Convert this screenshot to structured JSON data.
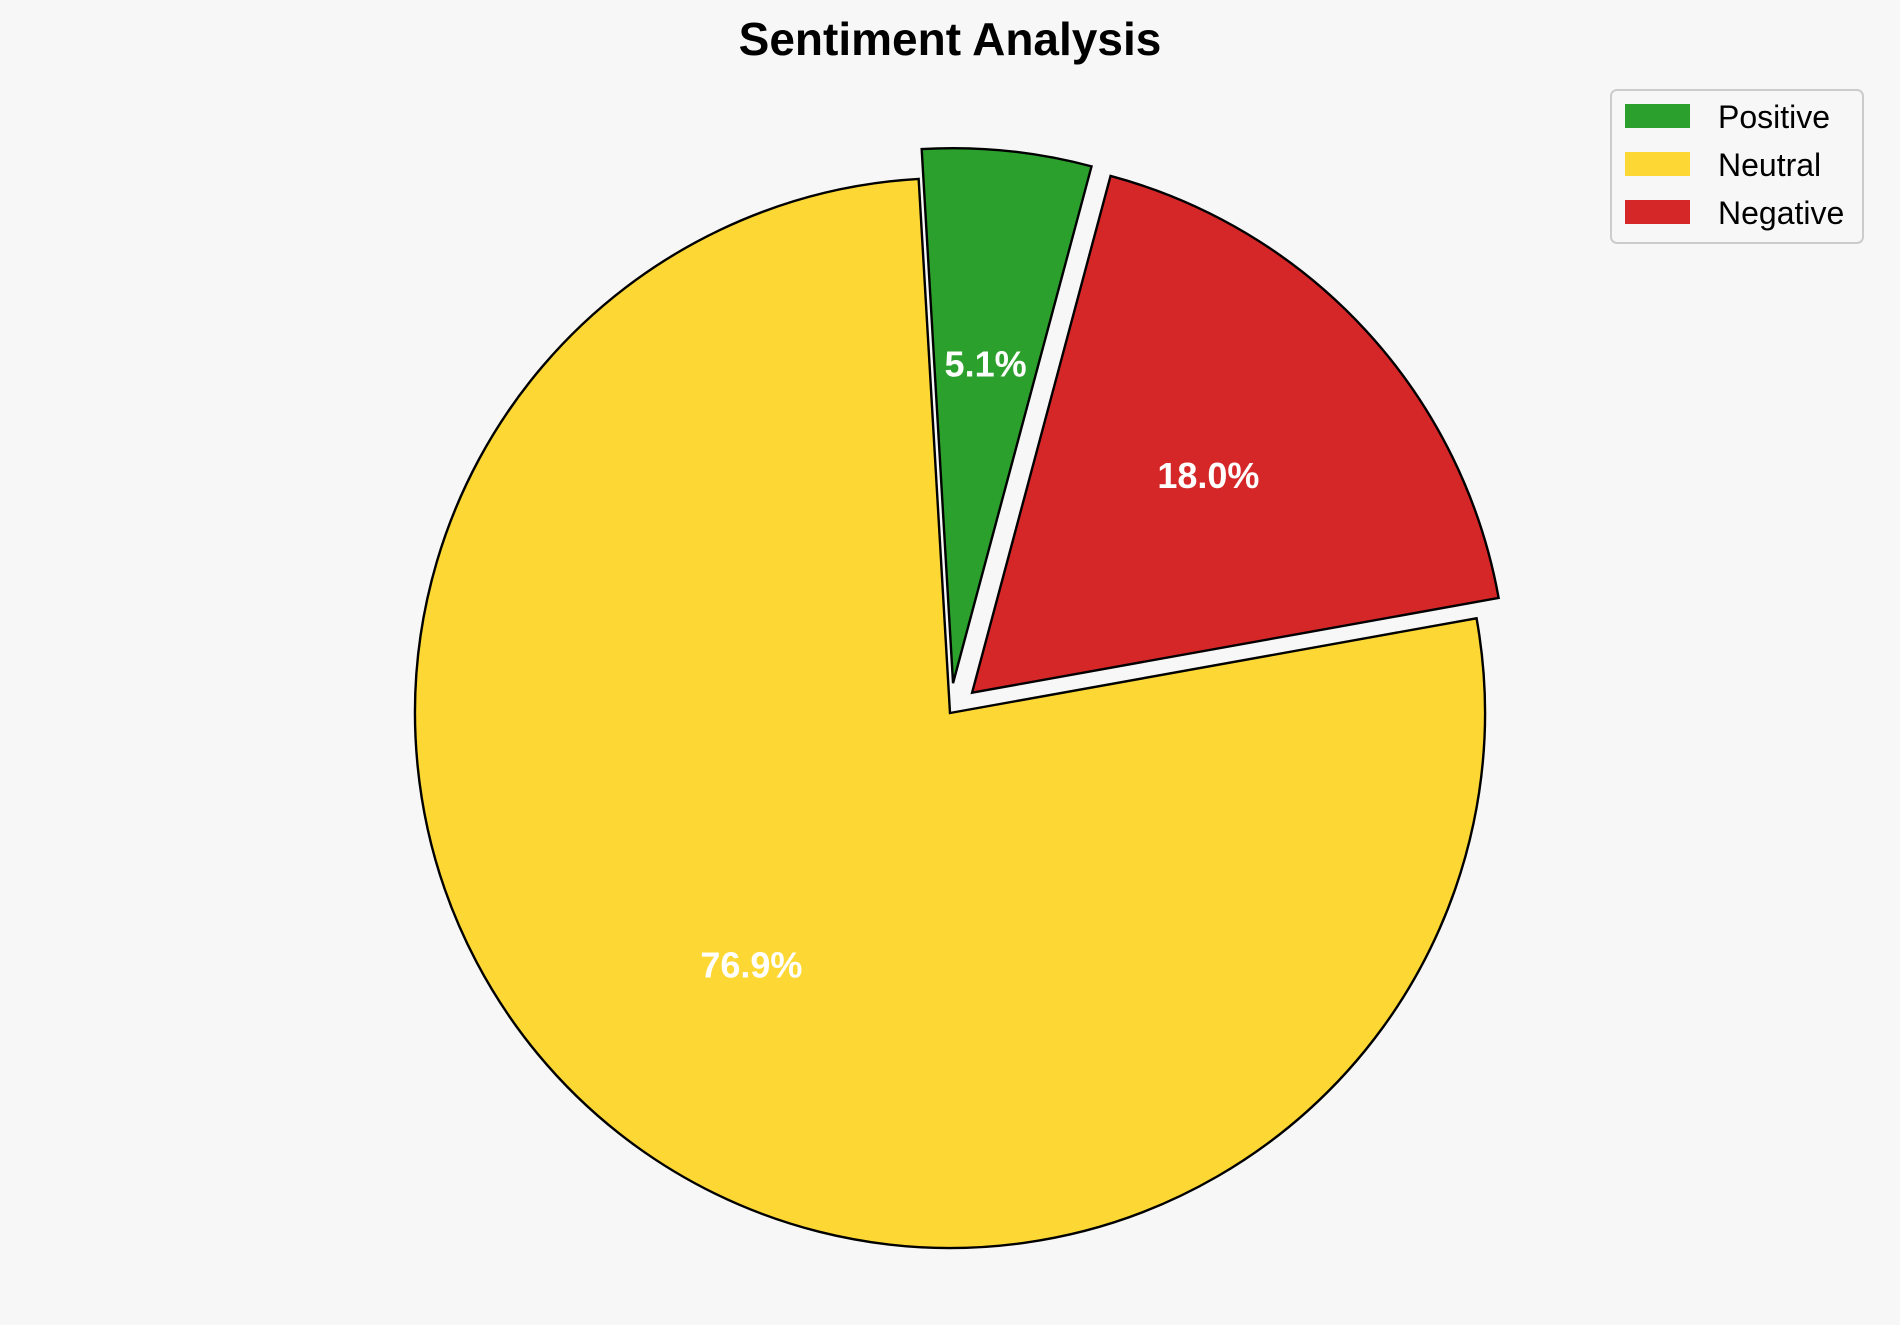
{
  "chart_data": {
    "type": "pie",
    "title": "Sentiment Analysis",
    "slices": [
      {
        "label": "Positive",
        "value": 5.1,
        "display": "5.1%",
        "color": "#2ca02c",
        "exploded": true
      },
      {
        "label": "Neutral",
        "value": 76.9,
        "display": "76.9%",
        "color": "#fdd835",
        "exploded": false
      },
      {
        "label": "Negative",
        "value": 18.0,
        "display": "18.0%",
        "color": "#d62728",
        "exploded": true
      }
    ],
    "legend": {
      "position": "top-right",
      "entries": [
        "Positive",
        "Neutral",
        "Negative"
      ]
    }
  }
}
